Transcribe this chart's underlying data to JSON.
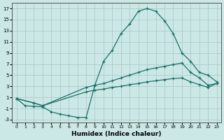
{
  "xlabel": "Humidex (Indice chaleur)",
  "bg_color": "#cce8e6",
  "grid_color": "#aaccc8",
  "line_color": "#1a7068",
  "xlim": [
    -0.5,
    23.5
  ],
  "ylim": [
    -3.5,
    18.0
  ],
  "xticks": [
    0,
    1,
    2,
    3,
    4,
    5,
    6,
    7,
    8,
    9,
    10,
    11,
    12,
    13,
    14,
    15,
    16,
    17,
    18,
    19,
    20,
    21,
    22,
    23
  ],
  "yticks": [
    -3,
    -1,
    1,
    3,
    5,
    7,
    9,
    11,
    13,
    15,
    17
  ],
  "line1_x": [
    0,
    1,
    2,
    3,
    4,
    5,
    6,
    7,
    8,
    9,
    10,
    11,
    12,
    13,
    14,
    15,
    16,
    17,
    18,
    19,
    20,
    21,
    22,
    23
  ],
  "line1_y": [
    0.8,
    -0.5,
    -0.6,
    -0.7,
    -1.6,
    -2.0,
    -2.3,
    -2.6,
    -2.6,
    3.2,
    7.5,
    9.5,
    12.5,
    14.2,
    16.5,
    17.0,
    16.5,
    14.8,
    12.5,
    9.0,
    7.5,
    5.5,
    5.0,
    3.8
  ],
  "line2_x": [
    0,
    2,
    3,
    8,
    9,
    10,
    11,
    12,
    13,
    14,
    15,
    16,
    17,
    18,
    19,
    20,
    21,
    22,
    23
  ],
  "line2_y": [
    0.8,
    0.0,
    -0.5,
    2.8,
    3.2,
    3.5,
    4.0,
    4.5,
    5.0,
    5.5,
    6.0,
    6.3,
    6.6,
    6.9,
    7.2,
    5.5,
    4.5,
    3.2,
    3.5
  ],
  "line3_x": [
    0,
    2,
    3,
    8,
    9,
    10,
    11,
    12,
    13,
    14,
    15,
    16,
    17,
    18,
    19,
    20,
    21,
    22,
    23
  ],
  "line3_y": [
    0.8,
    0.0,
    -0.5,
    2.0,
    2.3,
    2.5,
    2.8,
    3.0,
    3.3,
    3.5,
    3.8,
    4.0,
    4.2,
    4.4,
    4.5,
    3.8,
    3.3,
    2.8,
    3.5
  ]
}
